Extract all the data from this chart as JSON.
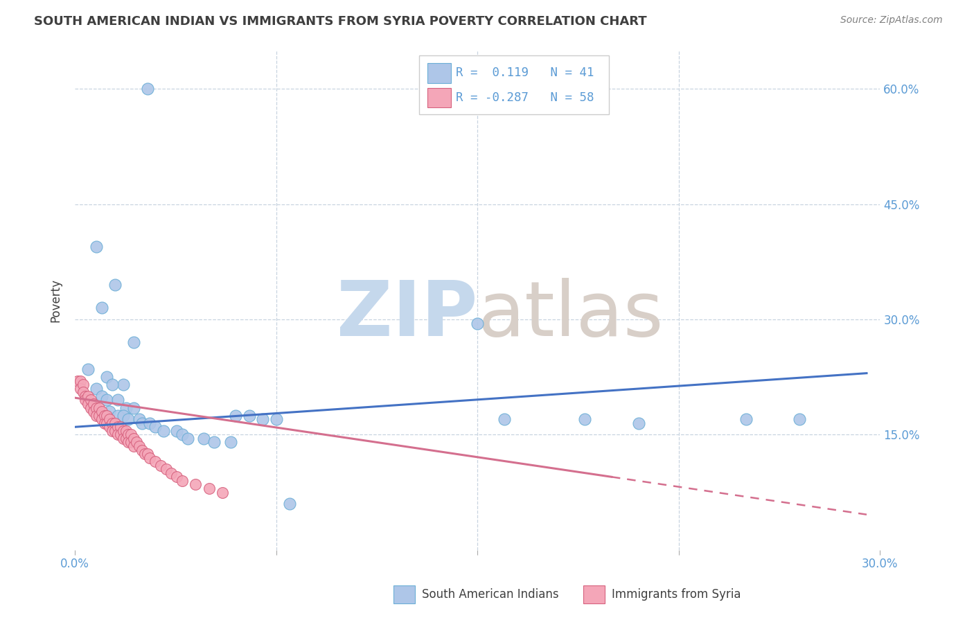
{
  "title": "SOUTH AMERICAN INDIAN VS IMMIGRANTS FROM SYRIA POVERTY CORRELATION CHART",
  "source": "Source: ZipAtlas.com",
  "ylabel": "Poverty",
  "legend": {
    "blue_R": "0.119",
    "blue_N": "41",
    "pink_R": "-0.287",
    "pink_N": "58"
  },
  "blue_scatter": [
    [
      0.027,
      0.6
    ],
    [
      0.008,
      0.395
    ],
    [
      0.015,
      0.345
    ],
    [
      0.01,
      0.315
    ],
    [
      0.022,
      0.27
    ],
    [
      0.005,
      0.235
    ],
    [
      0.012,
      0.225
    ],
    [
      0.018,
      0.215
    ],
    [
      0.008,
      0.21
    ],
    [
      0.014,
      0.215
    ],
    [
      0.01,
      0.2
    ],
    [
      0.012,
      0.195
    ],
    [
      0.016,
      0.195
    ],
    [
      0.019,
      0.185
    ],
    [
      0.022,
      0.185
    ],
    [
      0.013,
      0.18
    ],
    [
      0.016,
      0.175
    ],
    [
      0.018,
      0.175
    ],
    [
      0.02,
      0.17
    ],
    [
      0.024,
      0.17
    ],
    [
      0.025,
      0.165
    ],
    [
      0.028,
      0.165
    ],
    [
      0.03,
      0.16
    ],
    [
      0.033,
      0.155
    ],
    [
      0.038,
      0.155
    ],
    [
      0.04,
      0.15
    ],
    [
      0.042,
      0.145
    ],
    [
      0.048,
      0.145
    ],
    [
      0.052,
      0.14
    ],
    [
      0.058,
      0.14
    ],
    [
      0.06,
      0.175
    ],
    [
      0.065,
      0.175
    ],
    [
      0.07,
      0.17
    ],
    [
      0.075,
      0.17
    ],
    [
      0.15,
      0.295
    ],
    [
      0.16,
      0.17
    ],
    [
      0.19,
      0.17
    ],
    [
      0.21,
      0.165
    ],
    [
      0.25,
      0.17
    ],
    [
      0.27,
      0.17
    ],
    [
      0.08,
      0.06
    ]
  ],
  "pink_scatter": [
    [
      0.001,
      0.22
    ],
    [
      0.002,
      0.22
    ],
    [
      0.002,
      0.21
    ],
    [
      0.003,
      0.215
    ],
    [
      0.003,
      0.205
    ],
    [
      0.004,
      0.2
    ],
    [
      0.004,
      0.195
    ],
    [
      0.005,
      0.2
    ],
    [
      0.005,
      0.19
    ],
    [
      0.006,
      0.195
    ],
    [
      0.006,
      0.185
    ],
    [
      0.007,
      0.19
    ],
    [
      0.007,
      0.18
    ],
    [
      0.008,
      0.185
    ],
    [
      0.008,
      0.175
    ],
    [
      0.009,
      0.185
    ],
    [
      0.009,
      0.175
    ],
    [
      0.01,
      0.18
    ],
    [
      0.01,
      0.17
    ],
    [
      0.011,
      0.175
    ],
    [
      0.011,
      0.165
    ],
    [
      0.012,
      0.175
    ],
    [
      0.012,
      0.165
    ],
    [
      0.013,
      0.17
    ],
    [
      0.013,
      0.16
    ],
    [
      0.014,
      0.165
    ],
    [
      0.014,
      0.155
    ],
    [
      0.015,
      0.165
    ],
    [
      0.015,
      0.155
    ],
    [
      0.016,
      0.16
    ],
    [
      0.016,
      0.15
    ],
    [
      0.017,
      0.16
    ],
    [
      0.017,
      0.15
    ],
    [
      0.018,
      0.155
    ],
    [
      0.018,
      0.145
    ],
    [
      0.019,
      0.155
    ],
    [
      0.019,
      0.145
    ],
    [
      0.02,
      0.15
    ],
    [
      0.02,
      0.14
    ],
    [
      0.021,
      0.15
    ],
    [
      0.021,
      0.14
    ],
    [
      0.022,
      0.145
    ],
    [
      0.022,
      0.135
    ],
    [
      0.023,
      0.14
    ],
    [
      0.024,
      0.135
    ],
    [
      0.025,
      0.13
    ],
    [
      0.026,
      0.125
    ],
    [
      0.027,
      0.125
    ],
    [
      0.028,
      0.12
    ],
    [
      0.03,
      0.115
    ],
    [
      0.032,
      0.11
    ],
    [
      0.034,
      0.105
    ],
    [
      0.036,
      0.1
    ],
    [
      0.038,
      0.095
    ],
    [
      0.04,
      0.09
    ],
    [
      0.045,
      0.085
    ],
    [
      0.05,
      0.08
    ],
    [
      0.055,
      0.075
    ]
  ],
  "blue_line": [
    [
      0.0,
      0.16
    ],
    [
      0.295,
      0.23
    ]
  ],
  "pink_line_solid": [
    [
      0.0,
      0.198
    ],
    [
      0.2,
      0.095
    ]
  ],
  "pink_line_dash": [
    [
      0.2,
      0.095
    ],
    [
      0.295,
      0.046
    ]
  ],
  "xlim": [
    0.0,
    0.3
  ],
  "ylim": [
    0.0,
    0.65
  ],
  "yticks": [
    0.0,
    0.15,
    0.3,
    0.45,
    0.6
  ],
  "ytick_labels_right": [
    "",
    "15.0%",
    "30.0%",
    "45.0%",
    "60.0%"
  ],
  "xticks": [
    0.0,
    0.075,
    0.15,
    0.225,
    0.3
  ],
  "xtick_labels": [
    "0.0%",
    "",
    "",
    "",
    "30.0%"
  ],
  "blue_fill_color": "#aec6e8",
  "blue_edge_color": "#6baed6",
  "pink_fill_color": "#f4a6b8",
  "pink_edge_color": "#d6617e",
  "blue_line_color": "#4472c4",
  "pink_line_color": "#d46f8e",
  "title_color": "#3f3f3f",
  "axis_color": "#5b9bd5",
  "source_color": "#808080",
  "watermark_zip_color": "#c5d8ec",
  "watermark_atlas_color": "#d8cfc8",
  "background_color": "#ffffff",
  "grid_color": "#c8d4e0",
  "legend_edge_color": "#cccccc",
  "bottom_legend_text_color": "#404040"
}
